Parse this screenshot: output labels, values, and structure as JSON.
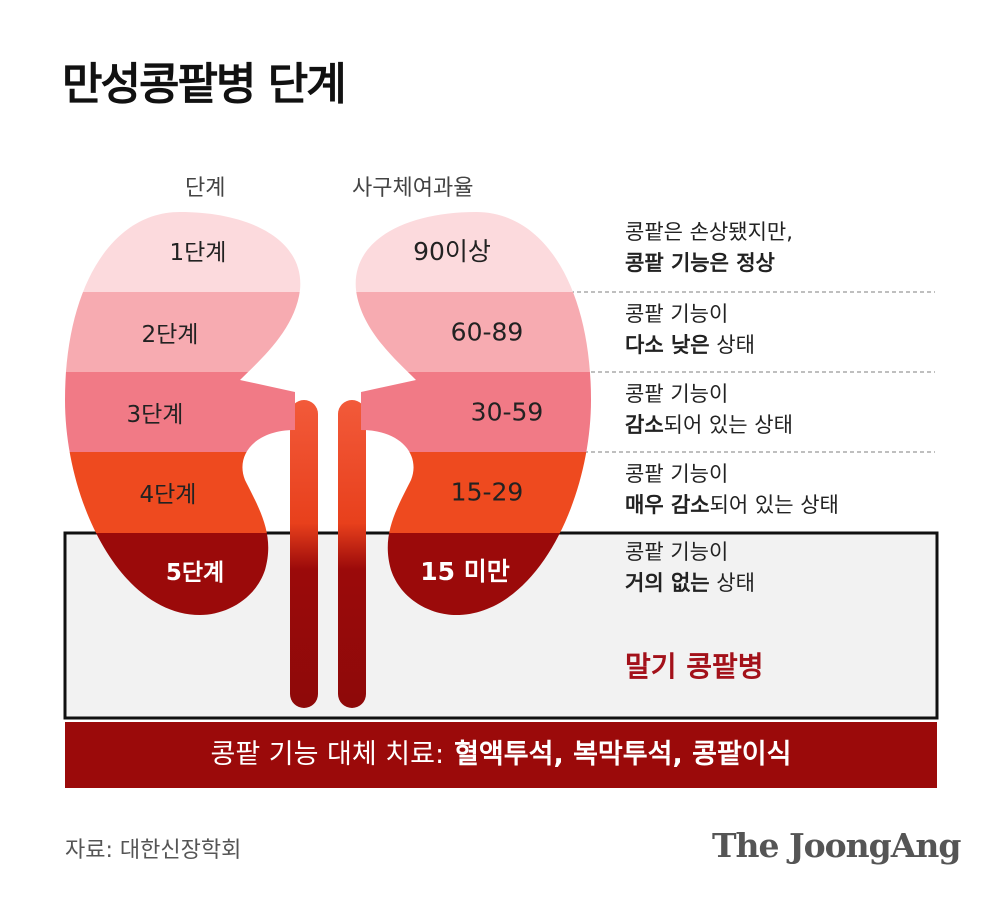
{
  "title": "만성콩팥병 단계",
  "column_headers": {
    "stage": "단계",
    "gfr": "사구체여과율"
  },
  "stages": [
    {
      "label": "1단계",
      "gfr": "90이상",
      "description": [
        [
          {
            "text": "콩팥은 손상됐지만,",
            "bold": false
          }
        ],
        [
          {
            "text": "콩팥 기능은 정상",
            "bold": true
          }
        ]
      ]
    },
    {
      "label": "2단계",
      "gfr": "60-89",
      "description": [
        [
          {
            "text": "콩팥 기능이",
            "bold": false
          }
        ],
        [
          {
            "text": "다소 낮은",
            "bold": true
          },
          {
            "text": " 상태",
            "bold": false
          }
        ]
      ]
    },
    {
      "label": "3단계",
      "gfr": "30-59",
      "description": [
        [
          {
            "text": "콩팥 기능이",
            "bold": false
          }
        ],
        [
          {
            "text": "감소",
            "bold": true
          },
          {
            "text": "되어 있는 상태",
            "bold": false
          }
        ]
      ]
    },
    {
      "label": "4단계",
      "gfr": "15-29",
      "description": [
        [
          {
            "text": "콩팥 기능이",
            "bold": false
          }
        ],
        [
          {
            "text": "매우 감소",
            "bold": true
          },
          {
            "text": "되어 있는 상태",
            "bold": false
          }
        ]
      ]
    },
    {
      "label": "5단계",
      "gfr": "15 미만",
      "description": [
        [
          {
            "text": "콩팥 기능이",
            "bold": false
          }
        ],
        [
          {
            "text": "거의 없는",
            "bold": true
          },
          {
            "text": " 상태",
            "bold": false
          }
        ]
      ]
    }
  ],
  "end_stage": "말기 콩팥병",
  "treatment": [
    {
      "text": "콩팥 기능 대체 치료:",
      "bold": false
    },
    {
      "text": "혈액투석, 복막투석, 콩팥이식",
      "bold": true
    }
  ],
  "source": "자료: 대한신장학회",
  "logo": "The JoongAng"
}
